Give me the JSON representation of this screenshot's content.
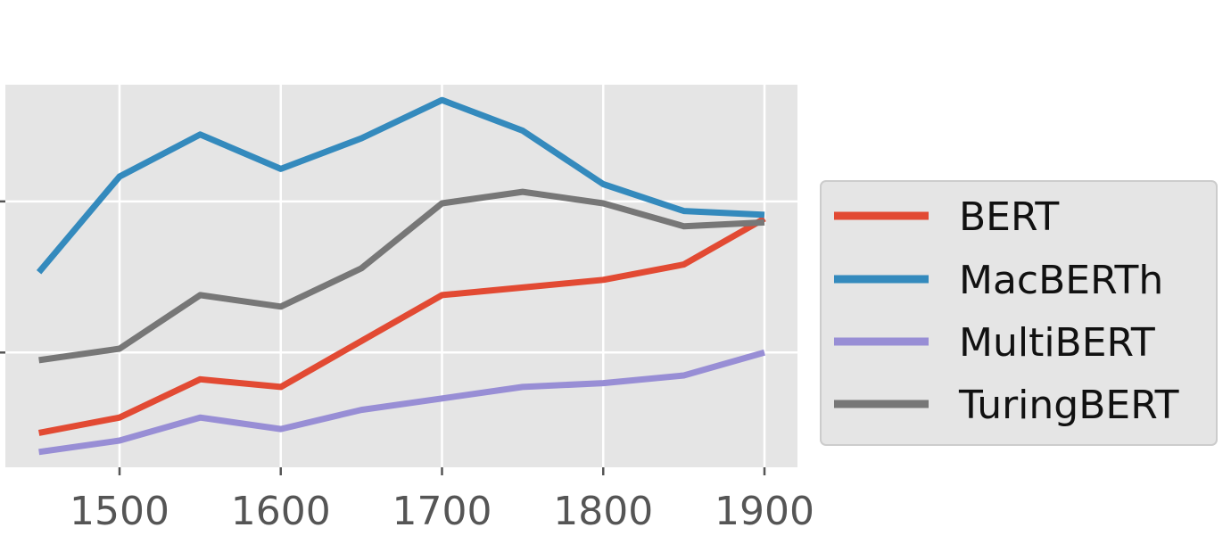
{
  "chart_data": {
    "type": "line",
    "title": "",
    "xlabel": "",
    "ylabel": "",
    "x": [
      1450,
      1500,
      1550,
      1600,
      1650,
      1700,
      1750,
      1800,
      1850,
      1900
    ],
    "xticks": [
      1500,
      1600,
      1700,
      1800,
      1900
    ],
    "xlim": [
      1430,
      1920
    ],
    "ylim": [
      0,
      1
    ],
    "grid": true,
    "legend_position": "outside-right",
    "series": [
      {
        "name": "BERT",
        "color": "#E24A33",
        "values": [
          0.09,
          0.13,
          0.23,
          0.21,
          0.33,
          0.45,
          0.47,
          0.49,
          0.53,
          0.65
        ]
      },
      {
        "name": "MacBERTh",
        "color": "#348ABD",
        "values": [
          0.51,
          0.76,
          0.87,
          0.78,
          0.86,
          0.96,
          0.88,
          0.74,
          0.67,
          0.66
        ]
      },
      {
        "name": "MultiBERT",
        "color": "#988ED5",
        "values": [
          0.04,
          0.07,
          0.13,
          0.1,
          0.15,
          0.18,
          0.21,
          0.22,
          0.24,
          0.3
        ]
      },
      {
        "name": "TuringBERT",
        "color": "#777777",
        "values": [
          0.28,
          0.31,
          0.45,
          0.42,
          0.52,
          0.69,
          0.72,
          0.69,
          0.63,
          0.64
        ]
      }
    ]
  }
}
